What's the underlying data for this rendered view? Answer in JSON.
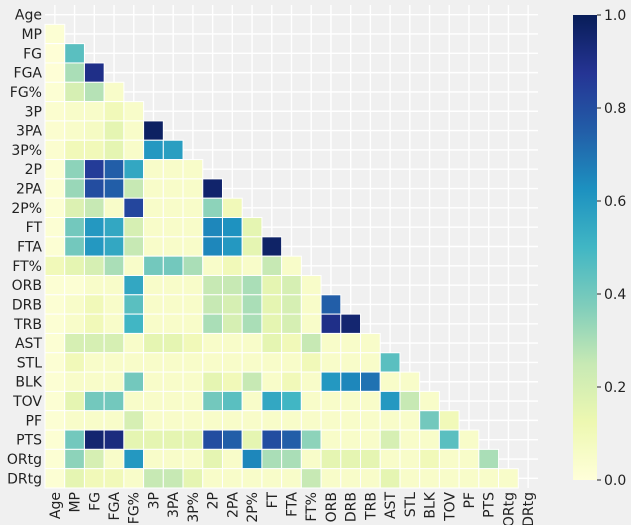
{
  "chart_data": {
    "type": "heatmap",
    "title": "",
    "xlabel": "",
    "ylabel": "",
    "variables": [
      "Age",
      "MP",
      "FG",
      "FGA",
      "FG%",
      "3P",
      "3PA",
      "3P%",
      "2P",
      "2PA",
      "2P%",
      "FT",
      "FTA",
      "FT%",
      "ORB",
      "DRB",
      "TRB",
      "AST",
      "STL",
      "BLK",
      "TOV",
      "PF",
      "PTS",
      "ORtg",
      "DRtg"
    ],
    "mask": "upper-triangle-and-diagonal",
    "colormap": "YlGnBu",
    "color_stops": [
      "#ffffd9",
      "#edf8b1",
      "#c7e9b4",
      "#7fcdbb",
      "#41b6c4",
      "#1d91c0",
      "#225ea8",
      "#253494",
      "#081d58"
    ],
    "color_range": [
      0.0,
      1.0
    ],
    "colorbar_ticks": [
      "0.0",
      "0.2",
      "0.4",
      "0.6",
      "0.8",
      "1.0"
    ],
    "lower_triangle_rows": [
      [],
      [
        0.02
      ],
      [
        0.01,
        0.45
      ],
      [
        0.01,
        0.3,
        0.9
      ],
      [
        0.02,
        0.2,
        0.28,
        0.05
      ],
      [
        0.03,
        0.05,
        0.05,
        0.1,
        0.05
      ],
      [
        0.03,
        0.05,
        0.07,
        0.15,
        0.05,
        0.98
      ],
      [
        0.03,
        0.1,
        0.1,
        0.15,
        0.05,
        0.6,
        0.58
      ],
      [
        0.02,
        0.35,
        0.85,
        0.75,
        0.55,
        0.05,
        0.05,
        0.05
      ],
      [
        0.02,
        0.33,
        0.8,
        0.75,
        0.25,
        0.05,
        0.05,
        0.05,
        0.96
      ],
      [
        0.02,
        0.18,
        0.25,
        0.05,
        0.82,
        0.05,
        0.05,
        0.05,
        0.35,
        0.1
      ],
      [
        0.02,
        0.4,
        0.6,
        0.55,
        0.2,
        0.05,
        0.05,
        0.05,
        0.65,
        0.62,
        0.15
      ],
      [
        0.02,
        0.4,
        0.6,
        0.55,
        0.25,
        0.05,
        0.05,
        0.05,
        0.65,
        0.6,
        0.15,
        0.97
      ],
      [
        0.1,
        0.15,
        0.2,
        0.3,
        0.05,
        0.4,
        0.4,
        0.3,
        0.05,
        0.1,
        0.05,
        0.25,
        0.05
      ],
      [
        0.02,
        0.02,
        0.05,
        0.05,
        0.55,
        0.05,
        0.05,
        0.05,
        0.25,
        0.25,
        0.3,
        0.15,
        0.2,
        0.05
      ],
      [
        0.02,
        0.05,
        0.1,
        0.05,
        0.45,
        0.05,
        0.05,
        0.05,
        0.25,
        0.2,
        0.3,
        0.15,
        0.2,
        0.05,
        0.75
      ],
      [
        0.02,
        0.05,
        0.1,
        0.05,
        0.5,
        0.05,
        0.05,
        0.05,
        0.3,
        0.2,
        0.3,
        0.15,
        0.2,
        0.05,
        0.9,
        0.95
      ],
      [
        0.02,
        0.2,
        0.2,
        0.2,
        0.05,
        0.15,
        0.15,
        0.1,
        0.05,
        0.05,
        0.05,
        0.15,
        0.1,
        0.25,
        0.05,
        0.05,
        0.05
      ],
      [
        0.02,
        0.1,
        0.05,
        0.05,
        0.05,
        0.05,
        0.05,
        0.05,
        0.05,
        0.05,
        0.05,
        0.05,
        0.05,
        0.1,
        0.05,
        0.05,
        0.05,
        0.45
      ],
      [
        0.02,
        0.05,
        0.05,
        0.05,
        0.4,
        0.05,
        0.05,
        0.05,
        0.15,
        0.1,
        0.25,
        0.05,
        0.1,
        0.05,
        0.6,
        0.65,
        0.7,
        0.05,
        0.05
      ],
      [
        0.02,
        0.15,
        0.4,
        0.4,
        0.05,
        0.05,
        0.05,
        0.05,
        0.4,
        0.45,
        0.05,
        0.55,
        0.5,
        0.05,
        0.05,
        0.05,
        0.05,
        0.6,
        0.25,
        0.05
      ],
      [
        0.02,
        0.05,
        0.05,
        0.05,
        0.2,
        0.05,
        0.05,
        0.05,
        0.05,
        0.05,
        0.05,
        0.05,
        0.05,
        0.05,
        0.05,
        0.05,
        0.05,
        0.05,
        0.05,
        0.4,
        0.1
      ],
      [
        0.02,
        0.4,
        0.95,
        0.92,
        0.15,
        0.15,
        0.15,
        0.15,
        0.8,
        0.75,
        0.15,
        0.8,
        0.75,
        0.35,
        0.05,
        0.05,
        0.05,
        0.2,
        0.05,
        0.05,
        0.45,
        0.05
      ],
      [
        0.02,
        0.35,
        0.2,
        0.05,
        0.6,
        0.05,
        0.05,
        0.05,
        0.15,
        0.05,
        0.65,
        0.3,
        0.3,
        0.05,
        0.15,
        0.15,
        0.15,
        0.05,
        0.05,
        0.1,
        0.05,
        0.05,
        0.3
      ],
      [
        0.02,
        0.15,
        0.1,
        0.1,
        0.05,
        0.25,
        0.25,
        0.15,
        0.05,
        0.05,
        0.05,
        0.05,
        0.05,
        0.25,
        0.05,
        0.05,
        0.05,
        0.15,
        0.05,
        0.05,
        0.05,
        0.05,
        0.05,
        0.05
      ]
    ]
  }
}
